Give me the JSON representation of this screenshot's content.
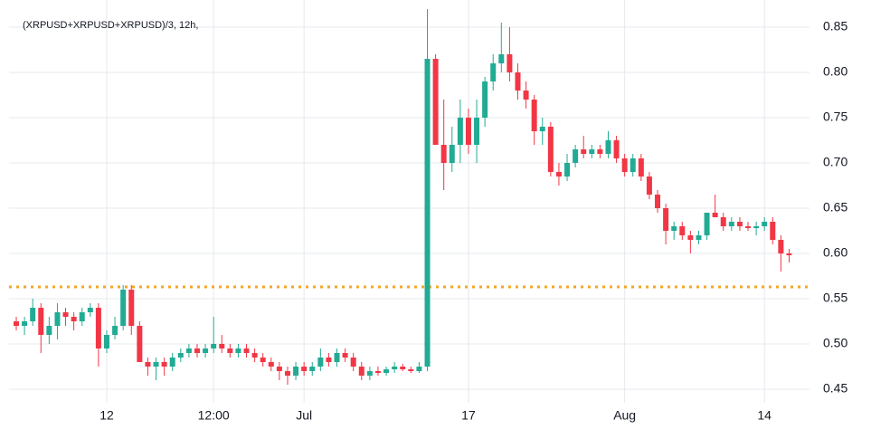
{
  "chart_data": {
    "type": "candlestick",
    "title": "(XRPUSD+XRPUSD+XRPUSD)/3, 12h,",
    "up_color": "#22ab94",
    "down_color": "#f23645",
    "grid": true,
    "reference_line": {
      "value": 0.563,
      "color": "#f5a623"
    },
    "ylim": [
      0.435,
      0.88
    ],
    "yticks": [
      0.45,
      {
        "value": 0.5,
        "label": "0.50"
      },
      0.55,
      {
        "value": 0.6,
        "label": "0.60"
      },
      0.65,
      {
        "value": 0.7,
        "label": "0.70"
      },
      0.75,
      {
        "value": 0.8,
        "label": "0.80"
      },
      0.85
    ],
    "xticks": [
      {
        "value": 11,
        "label": "12"
      },
      {
        "value": 24,
        "label": "12:00"
      },
      {
        "value": 35,
        "label": "Jul"
      },
      {
        "value": 55,
        "label": "17"
      },
      {
        "value": 74,
        "label": "Aug"
      },
      {
        "value": 91,
        "label": "14"
      }
    ],
    "ohlc": [
      [
        0.525,
        0.53,
        0.515,
        0.52
      ],
      [
        0.52,
        0.53,
        0.51,
        0.525
      ],
      [
        0.525,
        0.55,
        0.52,
        0.54
      ],
      [
        0.54,
        0.545,
        0.49,
        0.51
      ],
      [
        0.51,
        0.53,
        0.5,
        0.52
      ],
      [
        0.52,
        0.545,
        0.505,
        0.535
      ],
      [
        0.535,
        0.54,
        0.52,
        0.53
      ],
      [
        0.53,
        0.535,
        0.515,
        0.525
      ],
      [
        0.525,
        0.54,
        0.52,
        0.535
      ],
      [
        0.535,
        0.545,
        0.53,
        0.54
      ],
      [
        0.54,
        0.545,
        0.475,
        0.495
      ],
      [
        0.495,
        0.515,
        0.49,
        0.51
      ],
      [
        0.51,
        0.53,
        0.505,
        0.52
      ],
      [
        0.52,
        0.565,
        0.515,
        0.56
      ],
      [
        0.56,
        0.565,
        0.51,
        0.52
      ],
      [
        0.52,
        0.525,
        0.48,
        0.48
      ],
      [
        0.48,
        0.485,
        0.465,
        0.475
      ],
      [
        0.475,
        0.485,
        0.46,
        0.48
      ],
      [
        0.48,
        0.485,
        0.465,
        0.475
      ],
      [
        0.475,
        0.49,
        0.47,
        0.485
      ],
      [
        0.485,
        0.495,
        0.48,
        0.49
      ],
      [
        0.49,
        0.5,
        0.485,
        0.495
      ],
      [
        0.495,
        0.5,
        0.485,
        0.49
      ],
      [
        0.49,
        0.5,
        0.485,
        0.495
      ],
      [
        0.495,
        0.53,
        0.49,
        0.5
      ],
      [
        0.5,
        0.51,
        0.49,
        0.495
      ],
      [
        0.495,
        0.5,
        0.485,
        0.49
      ],
      [
        0.49,
        0.5,
        0.485,
        0.495
      ],
      [
        0.495,
        0.5,
        0.485,
        0.49
      ],
      [
        0.49,
        0.495,
        0.48,
        0.485
      ],
      [
        0.485,
        0.49,
        0.475,
        0.48
      ],
      [
        0.48,
        0.485,
        0.47,
        0.475
      ],
      [
        0.475,
        0.48,
        0.46,
        0.47
      ],
      [
        0.47,
        0.475,
        0.455,
        0.465
      ],
      [
        0.465,
        0.48,
        0.46,
        0.475
      ],
      [
        0.475,
        0.48,
        0.465,
        0.47
      ],
      [
        0.47,
        0.48,
        0.465,
        0.475
      ],
      [
        0.475,
        0.495,
        0.47,
        0.485
      ],
      [
        0.485,
        0.49,
        0.475,
        0.48
      ],
      [
        0.48,
        0.495,
        0.475,
        0.49
      ],
      [
        0.49,
        0.495,
        0.48,
        0.485
      ],
      [
        0.485,
        0.49,
        0.47,
        0.475
      ],
      [
        0.475,
        0.48,
        0.46,
        0.465
      ],
      [
        0.465,
        0.475,
        0.46,
        0.47
      ],
      [
        0.47,
        0.475,
        0.465,
        0.468
      ],
      [
        0.468,
        0.475,
        0.465,
        0.472
      ],
      [
        0.472,
        0.48,
        0.468,
        0.475
      ],
      [
        0.475,
        0.478,
        0.47,
        0.472
      ],
      [
        0.472,
        0.475,
        0.468,
        0.47
      ],
      [
        0.47,
        0.48,
        0.468,
        0.475
      ],
      [
        0.475,
        0.87,
        0.47,
        0.815
      ],
      [
        0.815,
        0.82,
        0.72,
        0.72
      ],
      [
        0.72,
        0.77,
        0.67,
        0.7
      ],
      [
        0.7,
        0.74,
        0.69,
        0.72
      ],
      [
        0.72,
        0.77,
        0.7,
        0.75
      ],
      [
        0.75,
        0.76,
        0.71,
        0.72
      ],
      [
        0.72,
        0.77,
        0.7,
        0.75
      ],
      [
        0.75,
        0.795,
        0.74,
        0.79
      ],
      [
        0.79,
        0.82,
        0.78,
        0.81
      ],
      [
        0.81,
        0.855,
        0.8,
        0.82
      ],
      [
        0.82,
        0.85,
        0.79,
        0.8
      ],
      [
        0.8,
        0.81,
        0.77,
        0.78
      ],
      [
        0.78,
        0.79,
        0.76,
        0.77
      ],
      [
        0.77,
        0.775,
        0.72,
        0.735
      ],
      [
        0.735,
        0.75,
        0.72,
        0.74
      ],
      [
        0.74,
        0.745,
        0.685,
        0.69
      ],
      [
        0.69,
        0.7,
        0.675,
        0.685
      ],
      [
        0.685,
        0.71,
        0.68,
        0.7
      ],
      [
        0.7,
        0.72,
        0.695,
        0.715
      ],
      [
        0.715,
        0.73,
        0.705,
        0.71
      ],
      [
        0.71,
        0.72,
        0.705,
        0.715
      ],
      [
        0.715,
        0.72,
        0.705,
        0.71
      ],
      [
        0.71,
        0.735,
        0.705,
        0.725
      ],
      [
        0.725,
        0.73,
        0.7,
        0.705
      ],
      [
        0.705,
        0.71,
        0.685,
        0.69
      ],
      [
        0.69,
        0.71,
        0.685,
        0.705
      ],
      [
        0.705,
        0.71,
        0.68,
        0.685
      ],
      [
        0.685,
        0.69,
        0.66,
        0.665
      ],
      [
        0.665,
        0.67,
        0.645,
        0.65
      ],
      [
        0.65,
        0.655,
        0.61,
        0.625
      ],
      [
        0.625,
        0.635,
        0.615,
        0.63
      ],
      [
        0.63,
        0.635,
        0.615,
        0.62
      ],
      [
        0.62,
        0.625,
        0.6,
        0.615
      ],
      [
        0.615,
        0.625,
        0.61,
        0.62
      ],
      [
        0.62,
        0.645,
        0.615,
        0.645
      ],
      [
        0.645,
        0.665,
        0.64,
        0.64
      ],
      [
        0.64,
        0.645,
        0.625,
        0.63
      ],
      [
        0.63,
        0.64,
        0.625,
        0.635
      ],
      [
        0.635,
        0.64,
        0.625,
        0.63
      ],
      [
        0.63,
        0.635,
        0.625,
        0.628
      ],
      [
        0.628,
        0.635,
        0.62,
        0.63
      ],
      [
        0.63,
        0.64,
        0.625,
        0.635
      ],
      [
        0.635,
        0.64,
        0.61,
        0.615
      ],
      [
        0.615,
        0.62,
        0.58,
        0.6
      ],
      [
        0.6,
        0.605,
        0.59,
        0.598
      ]
    ]
  }
}
